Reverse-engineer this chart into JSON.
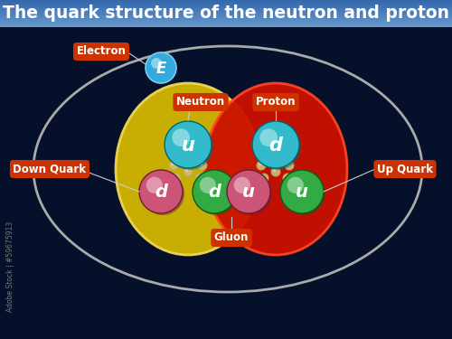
{
  "title": "The quark structure of the neutron and proton",
  "title_color": "#FFFFFF",
  "title_bg_top": "#6699CC",
  "title_bg_bot": "#3366AA",
  "bg_color": "#06102A",
  "label_bg": "#CC3300",
  "label_fg": "#FFFFFF",
  "neutron_color": "#D4B800",
  "neutron_edge": "#EED855",
  "proton_color": "#CC1100",
  "proton_edge": "#FF4422",
  "electron_color": "#33AADD",
  "electron_edge": "#77CCEE",
  "quark_u_cyan": "#33BBCC",
  "quark_d_pink": "#CC5577",
  "quark_d_green": "#33AA44",
  "gluon_color": "#CCBB77",
  "orbit_color": "#AAAAAA",
  "line_color": "#CCCCCC",
  "label_electron": "Electron",
  "label_neutron": "Neutron",
  "label_proton": "Proton",
  "label_down": "Down Quark",
  "label_up": "Up Quark",
  "label_gluon": "Gluon",
  "label_id": "Adobe Stock | #59675913"
}
